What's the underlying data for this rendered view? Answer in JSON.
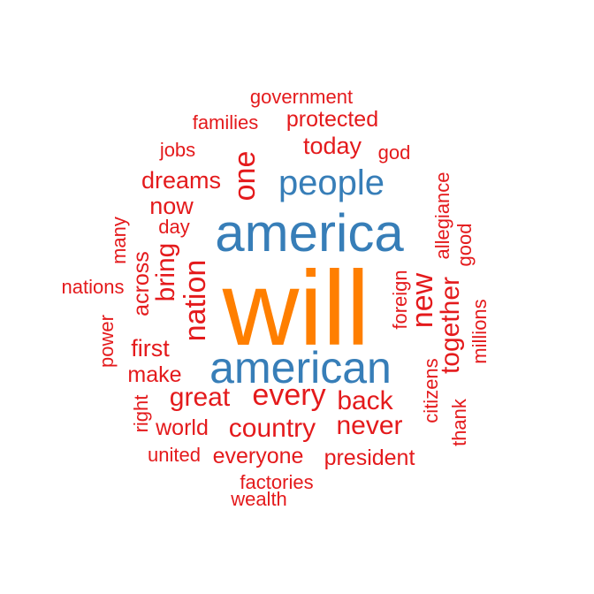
{
  "colors": {
    "primary": "#ff7f00",
    "secondary": "#377eb8",
    "tertiary": "#e41a1c"
  },
  "words": [
    {
      "text": "will",
      "color": "primary"
    },
    {
      "text": "america",
      "color": "secondary"
    },
    {
      "text": "american",
      "color": "secondary"
    },
    {
      "text": "people",
      "color": "secondary"
    },
    {
      "text": "government",
      "color": "tertiary"
    },
    {
      "text": "protected",
      "color": "tertiary"
    },
    {
      "text": "families",
      "color": "tertiary"
    },
    {
      "text": "today",
      "color": "tertiary"
    },
    {
      "text": "jobs",
      "color": "tertiary"
    },
    {
      "text": "god",
      "color": "tertiary"
    },
    {
      "text": "one",
      "color": "tertiary"
    },
    {
      "text": "dreams",
      "color": "tertiary"
    },
    {
      "text": "now",
      "color": "tertiary"
    },
    {
      "text": "day",
      "color": "tertiary"
    },
    {
      "text": "bring",
      "color": "tertiary"
    },
    {
      "text": "across",
      "color": "tertiary"
    },
    {
      "text": "many",
      "color": "tertiary"
    },
    {
      "text": "nations",
      "color": "tertiary"
    },
    {
      "text": "nation",
      "color": "tertiary"
    },
    {
      "text": "allegiance",
      "color": "tertiary"
    },
    {
      "text": "good",
      "color": "tertiary"
    },
    {
      "text": "new",
      "color": "tertiary"
    },
    {
      "text": "foreign",
      "color": "tertiary"
    },
    {
      "text": "together",
      "color": "tertiary"
    },
    {
      "text": "millions",
      "color": "tertiary"
    },
    {
      "text": "power",
      "color": "tertiary"
    },
    {
      "text": "first",
      "color": "tertiary"
    },
    {
      "text": "make",
      "color": "tertiary"
    },
    {
      "text": "great",
      "color": "tertiary"
    },
    {
      "text": "every",
      "color": "tertiary"
    },
    {
      "text": "back",
      "color": "tertiary"
    },
    {
      "text": "citizens",
      "color": "tertiary"
    },
    {
      "text": "thank",
      "color": "tertiary"
    },
    {
      "text": "right",
      "color": "tertiary"
    },
    {
      "text": "world",
      "color": "tertiary"
    },
    {
      "text": "country",
      "color": "tertiary"
    },
    {
      "text": "never",
      "color": "tertiary"
    },
    {
      "text": "united",
      "color": "tertiary"
    },
    {
      "text": "everyone",
      "color": "tertiary"
    },
    {
      "text": "president",
      "color": "tertiary"
    },
    {
      "text": "factories",
      "color": "tertiary"
    },
    {
      "text": "wealth",
      "color": "tertiary"
    }
  ]
}
